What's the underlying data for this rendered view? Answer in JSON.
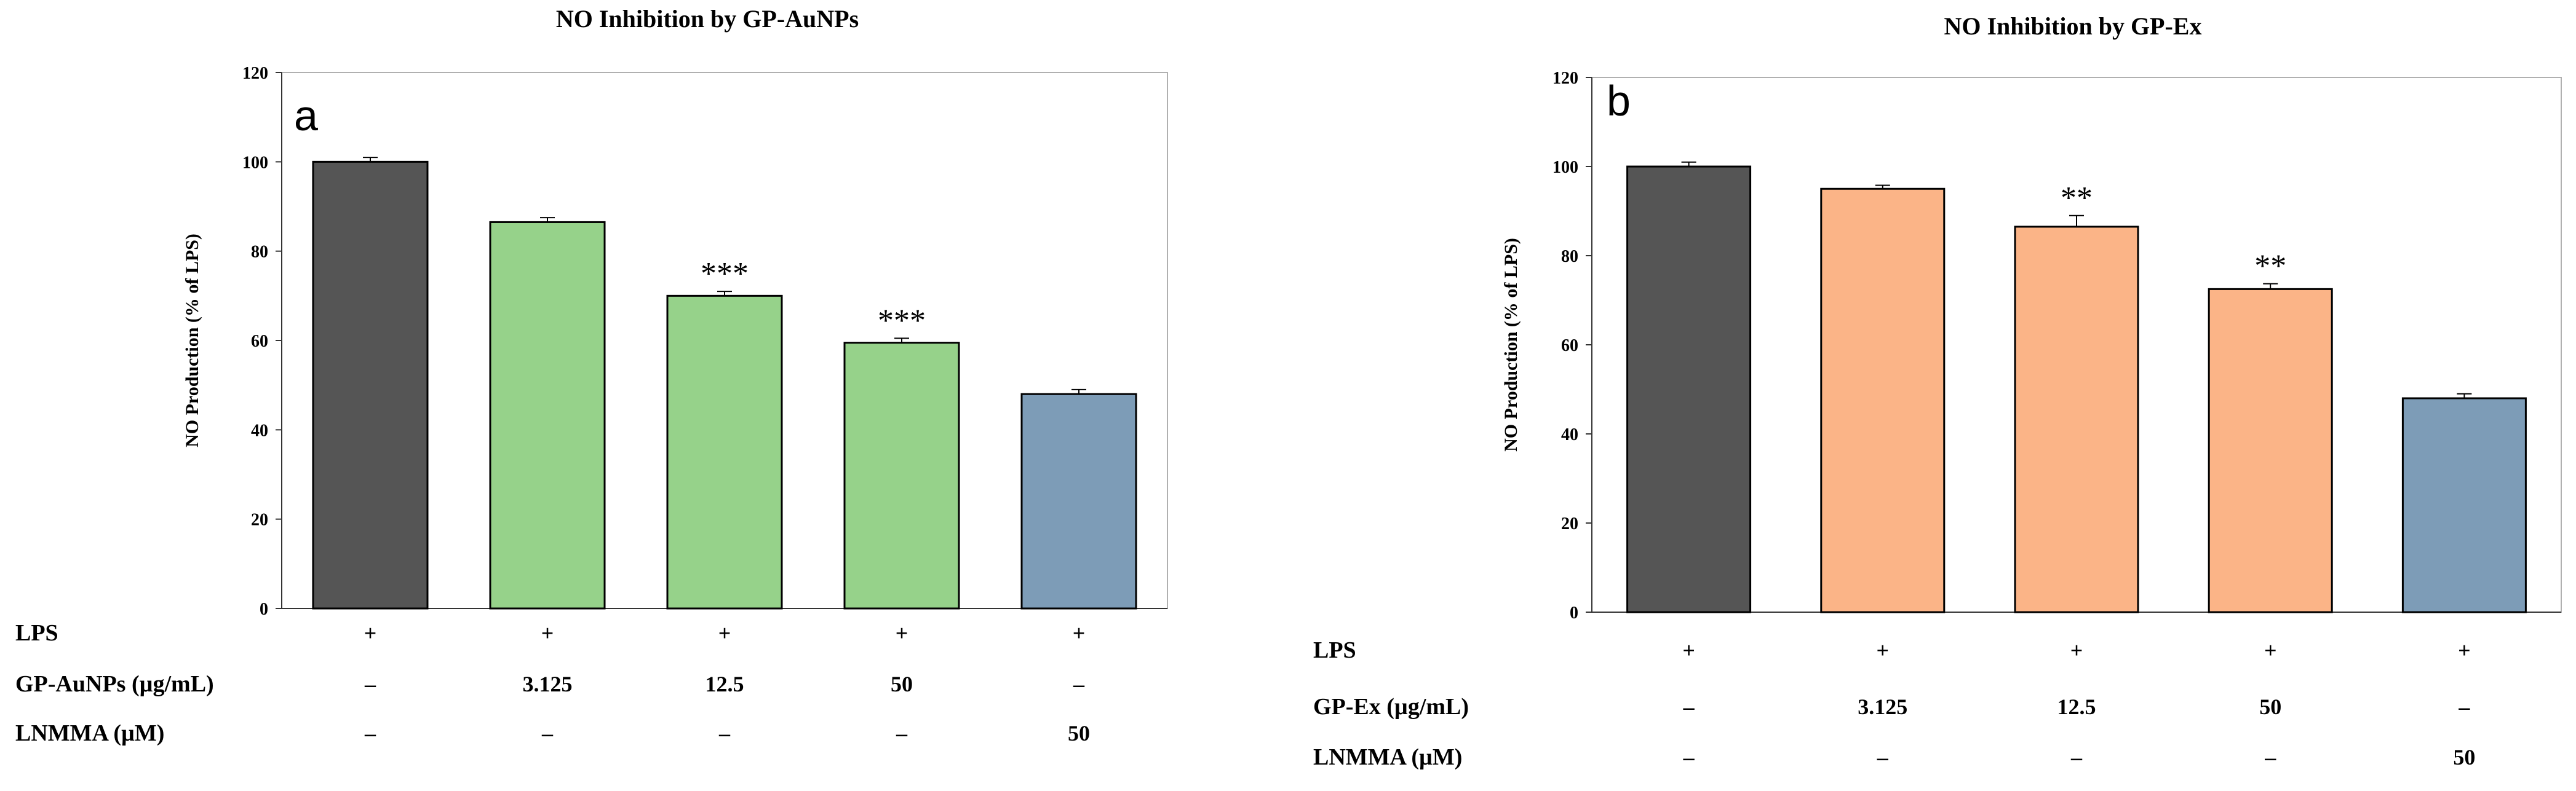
{
  "chart_data": [
    {
      "type": "bar",
      "panel_label": "a",
      "title": "NO Inhibition by GP-AuNPs",
      "ylabel": "NO Production (% of LPS)",
      "xlabel": "",
      "ylim": [
        0,
        120
      ],
      "yticks": [
        0,
        20,
        40,
        60,
        80,
        100,
        120
      ],
      "categories": [
        "LPS",
        "GP-AuNPs 3.125",
        "GP-AuNPs 12.5",
        "GP-AuNPs 50",
        "LNMMA 50"
      ],
      "values": [
        100,
        86.5,
        70,
        59.5,
        48
      ],
      "errors": [
        1.0,
        1.0,
        1.0,
        1.0,
        1.0
      ],
      "colors": [
        "#555555",
        "#96d28a",
        "#96d28a",
        "#96d28a",
        "#7d9cb7"
      ],
      "significance": [
        "",
        "",
        "***",
        "***",
        ""
      ],
      "treatment_rows": [
        {
          "label": "LPS",
          "values": [
            "+",
            "+",
            "+",
            "+",
            "+"
          ]
        },
        {
          "label": "GP-AuNPs (µg/mL)",
          "values": [
            "–",
            "3.125",
            "12.5",
            "50",
            "–"
          ]
        },
        {
          "label": "LNMMA (µM)",
          "values": [
            "–",
            "–",
            "–",
            "–",
            "50"
          ]
        }
      ]
    },
    {
      "type": "bar",
      "panel_label": "b",
      "title": "NO Inhibition by GP-Ex",
      "ylabel": "NO Production (% of LPS)",
      "xlabel": "",
      "ylim": [
        0,
        120
      ],
      "yticks": [
        0,
        20,
        40,
        60,
        80,
        100,
        120
      ],
      "categories": [
        "LPS",
        "GP-Ex 3.125",
        "GP-Ex 12.5",
        "GP-Ex 50",
        "LNMMA 50"
      ],
      "values": [
        100,
        95,
        86.5,
        72.5,
        48
      ],
      "errors": [
        1.0,
        0.8,
        2.5,
        1.2,
        1.0
      ],
      "colors": [
        "#555555",
        "#fbb487",
        "#fbb487",
        "#fbb487",
        "#7d9cb7"
      ],
      "significance": [
        "",
        "",
        "**",
        "**",
        ""
      ],
      "treatment_rows": [
        {
          "label": "LPS",
          "values": [
            "+",
            "+",
            "+",
            "+",
            "+"
          ]
        },
        {
          "label": "GP-Ex (µg/mL)",
          "values": [
            "–",
            "3.125",
            "12.5",
            "50",
            "–"
          ]
        },
        {
          "label": "LNMMA (µM)",
          "values": [
            "–",
            "–",
            "–",
            "–",
            "50"
          ]
        }
      ]
    }
  ]
}
